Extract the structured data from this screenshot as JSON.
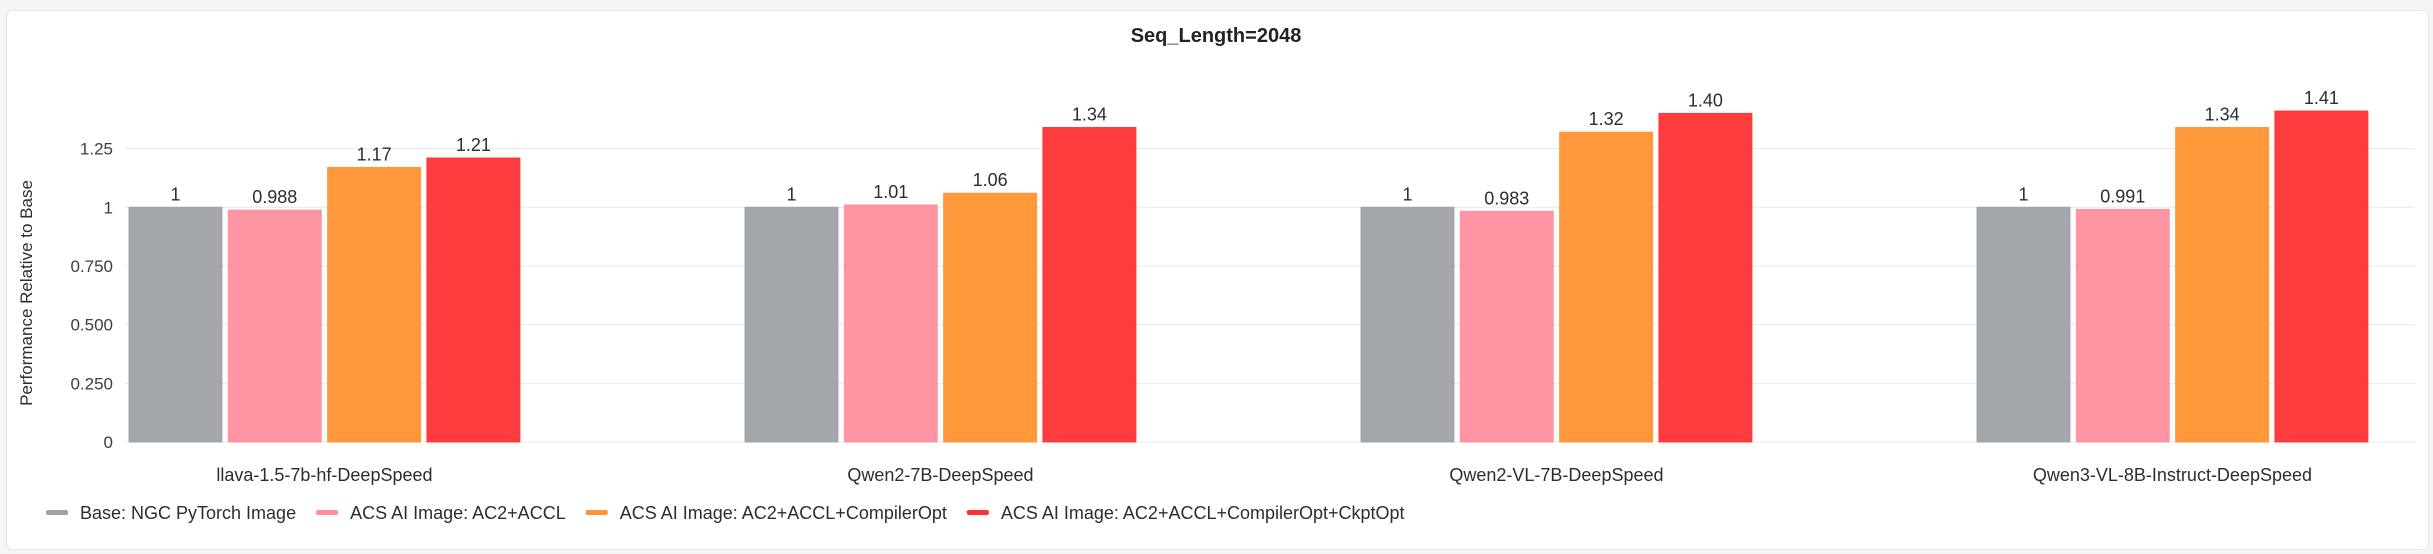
{
  "chart_data": {
    "type": "bar",
    "title": "Seq_Length=2048",
    "xlabel": "",
    "ylabel": "Performance Relative to Base",
    "ylim": [
      0,
      1.45
    ],
    "yticks": [
      0,
      0.25,
      0.5,
      0.75,
      1,
      1.25
    ],
    "ytick_labels": [
      "0",
      "0.250",
      "0.500",
      "0.750",
      "1",
      "1.25"
    ],
    "grid": true,
    "legend_position": "bottom-left",
    "categories": [
      "llava-1.5-7b-hf-DeepSpeed",
      "Qwen2-7B-DeepSpeed",
      "Qwen2-VL-7B-DeepSpeed",
      "Qwen3-VL-8B-Instruct-DeepSpeed"
    ],
    "series": [
      {
        "name": "Base: NGC PyTorch Image",
        "color": "#9ea1a6",
        "values": [
          1,
          1,
          1,
          1
        ],
        "labels": [
          "1",
          "1",
          "1",
          "1"
        ]
      },
      {
        "name": "ACS AI Image: AC2+ACCL",
        "color": "#ff8e9e",
        "values": [
          0.988,
          1.01,
          0.983,
          0.991
        ],
        "labels": [
          "0.988",
          "1.01",
          "0.983",
          "0.991"
        ]
      },
      {
        "name": "ACS AI Image: AC2+ACCL+CompilerOpt",
        "color": "#ff9432",
        "values": [
          1.17,
          1.06,
          1.32,
          1.34
        ],
        "labels": [
          "1.17",
          "1.06",
          "1.32",
          "1.34"
        ]
      },
      {
        "name": "ACS AI Image: AC2+ACCL+CompilerOpt+CkptOpt",
        "color": "#ff3134",
        "values": [
          1.21,
          1.34,
          1.4,
          1.41
        ],
        "labels": [
          "1.21",
          "1.34",
          "1.40",
          "1.41"
        ]
      }
    ]
  }
}
